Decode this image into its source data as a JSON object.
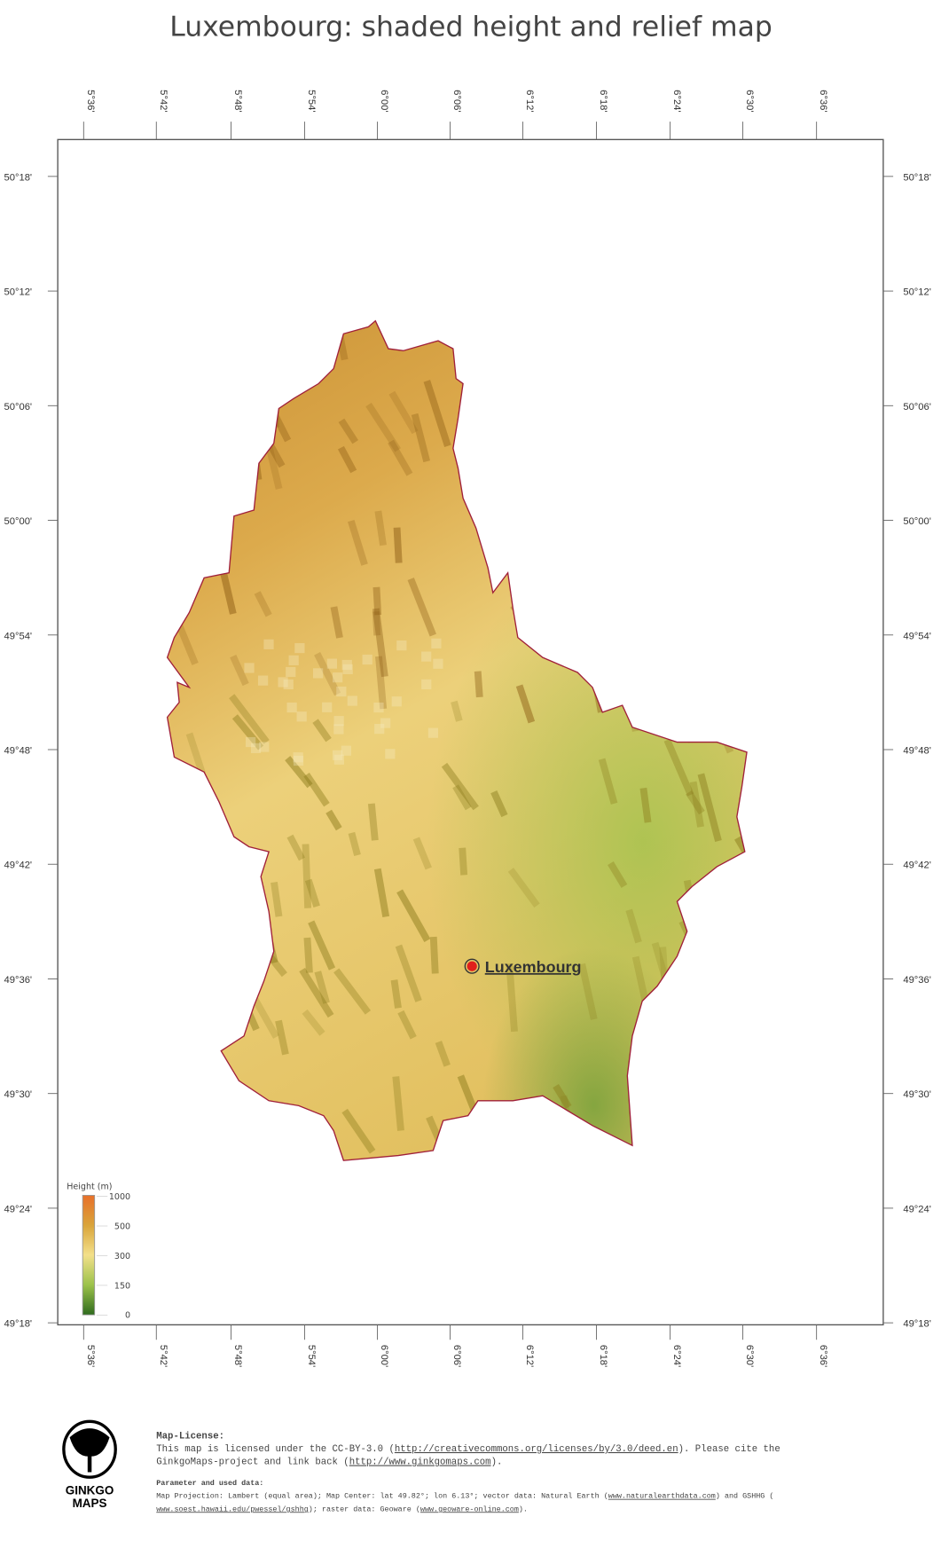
{
  "title": "Luxembourg: shaded height and relief map",
  "lon_ticks": [
    "5°36'",
    "5°42'",
    "5°48'",
    "5°54'",
    "6°00'",
    "6°06'",
    "6°12'",
    "6°18'",
    "6°24'",
    "6°30'",
    "6°36'"
  ],
  "lat_ticks": [
    "50°18'",
    "50°12'",
    "50°06'",
    "50°00'",
    "49°54'",
    "49°48'",
    "49°42'",
    "49°36'",
    "49°30'",
    "49°24'",
    "49°18'"
  ],
  "city": {
    "name": "Luxembourg",
    "marker_color": "#e0201c"
  },
  "border_color": "#a0203a",
  "legend": {
    "title": "Height  (m)",
    "labels": [
      "1000",
      "500",
      "300",
      "150",
      "0"
    ],
    "colors": [
      "#e8702a",
      "#d9a43a",
      "#f3e08a",
      "#9cc24a",
      "#2f6b1e"
    ]
  },
  "logo": {
    "line1": "GINKGO",
    "line2": "MAPS"
  },
  "footer": {
    "license_heading": "Map-License:",
    "license_l1_a": "This map is licensed under the CC-BY-3.0 (",
    "license_l1_link": "http://creativecommons.org/licenses/by/3.0/deed.en",
    "license_l1_b": ").  Please cite the",
    "license_l2_a": "GinkgoMaps-project and link back (",
    "license_l2_link": "http://www.ginkgomaps.com",
    "license_l2_b": ").",
    "param_heading": "Parameter and used data:",
    "param_l1_a": "Map Projection: Lambert (equal area); Map Center: lat 49.82°; lon 6.13°; vector data: Natural Earth (",
    "param_l1_link": "www.naturalearthdata.com",
    "param_l1_b": ") and GSHHG (",
    "param_l2_link": "www.soest.hawaii.edu/pwessel/gshhg",
    "param_l2_a": "); raster data: Geoware (",
    "param_l2_link2": "www.geoware-online.com",
    "param_l2_b": ")."
  }
}
